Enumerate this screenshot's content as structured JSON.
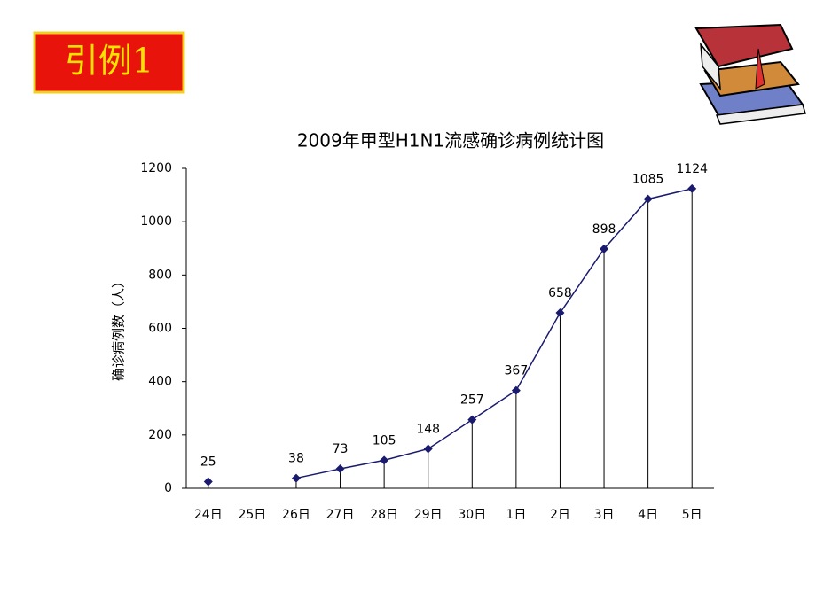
{
  "badge": "引例1",
  "chart_data": {
    "type": "line",
    "title": "2009年甲型H1N1流感确诊病例统计图",
    "y_label": "确诊病例数（人）",
    "categories": [
      "24日",
      "25日",
      "26日",
      "27日",
      "28日",
      "29日",
      "30日",
      "1日",
      "2日",
      "3日",
      "4日",
      "5日"
    ],
    "series": [
      {
        "color": "#1a1a6e",
        "values": [
          25,
          null,
          38,
          73,
          105,
          148,
          257,
          367,
          658,
          898,
          1085,
          1124
        ]
      }
    ],
    "ylim": [
      0,
      1200
    ],
    "yticks": [
      0,
      200,
      400,
      600,
      800,
      1000,
      1200
    ],
    "grid": false,
    "drop_lines": true
  }
}
